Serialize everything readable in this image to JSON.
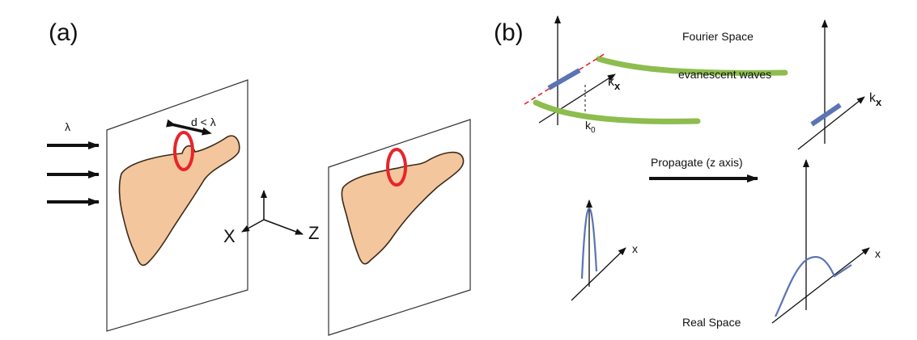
{
  "panel_a": {
    "label": "(a)",
    "wavelength_symbol": "λ",
    "aperture_label": "d < λ",
    "axis_x_label": "X",
    "axis_z_label": "Z"
  },
  "panel_b": {
    "label": "(b)",
    "fourier_space_label": "Fourier Space",
    "evanescent_label": "evanescent waves",
    "kx_label": "k",
    "kx_sub": "x",
    "kx_label_right": "k",
    "kx_sub_right": "x",
    "k0_label": "k",
    "k0_sub": "0",
    "propagate_label": "Propagate (z axis)",
    "x_label_left": "x",
    "x_label_right": "x",
    "real_space_label": "Real Space"
  },
  "colors": {
    "object_fill": "#f3c69d",
    "ring": "#e8242a",
    "evanescent": "#8dbd4e",
    "spectrum": "#5b74b3",
    "cutoff": "#e8242a"
  }
}
